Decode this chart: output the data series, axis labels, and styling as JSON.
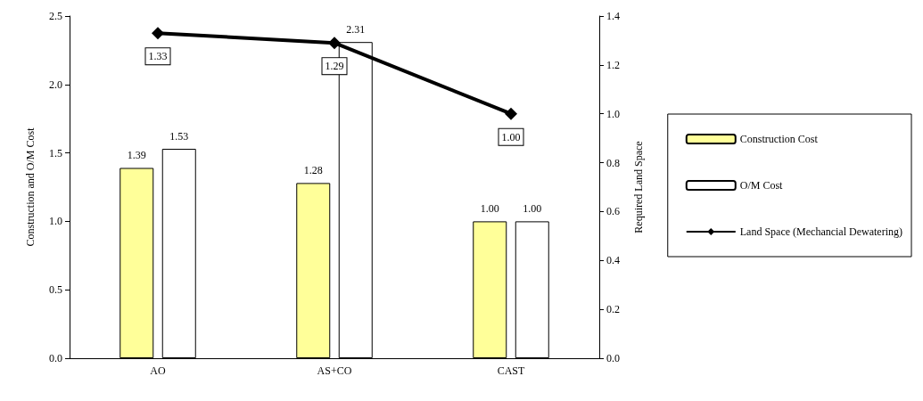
{
  "chart_data": {
    "type": "bar",
    "ylabel": "Construction and O/M Cost",
    "y2label": "Required Land Space",
    "categories": [
      "AO",
      "AS+CO",
      "CAST"
    ],
    "series": [
      {
        "name": "Construction Cost",
        "color": "#ffff99",
        "values": [
          1.39,
          1.28,
          1.0
        ],
        "value_labels": [
          "1.39",
          "1.28",
          "1.00"
        ]
      },
      {
        "name": "O/M Cost",
        "color": "#ffffff",
        "values": [
          1.53,
          2.31,
          1.0
        ],
        "value_labels": [
          "1.53",
          "2.31",
          "1.00"
        ]
      },
      {
        "name": "Land Space (Mechancial Dewatering)",
        "type": "line",
        "axis": "y2",
        "color": "#000000",
        "values": [
          1.33,
          1.29,
          1.0
        ],
        "value_labels": [
          "1.33",
          "1.29",
          "1.00"
        ]
      }
    ],
    "ylim": [
      0,
      2.5
    ],
    "yticks": [
      {
        "value": 0,
        "label": "0.0"
      },
      {
        "value": 0.5,
        "label": "0.5"
      },
      {
        "value": 1,
        "label": "1.0"
      },
      {
        "value": 1.5,
        "label": "1.5"
      },
      {
        "value": 2,
        "label": "2.0"
      },
      {
        "value": 2.5,
        "label": "2.5"
      }
    ],
    "y2lim": [
      0,
      1.4
    ],
    "y2ticks": [
      {
        "value": 0,
        "label": "0.0"
      },
      {
        "value": 0.2,
        "label": "0.2"
      },
      {
        "value": 0.4,
        "label": "0.4"
      },
      {
        "value": 0.6,
        "label": "0.6"
      },
      {
        "value": 0.8,
        "label": "0.8"
      },
      {
        "value": 1,
        "label": "1.0"
      },
      {
        "value": 1.2,
        "label": "1.2"
      },
      {
        "value": 1.4,
        "label": "1.4"
      }
    ],
    "grid": false,
    "legend": "right",
    "marker": "diamond",
    "line_style": "solid"
  }
}
